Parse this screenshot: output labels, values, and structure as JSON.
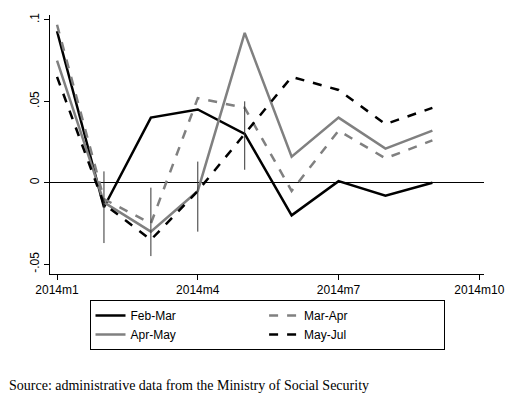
{
  "chart_data": {
    "type": "line",
    "caption": "Source: administrative data from the Ministry of Social Security",
    "categories": [
      "2014m1",
      null,
      null,
      "2014m4",
      null,
      null,
      "2014m7",
      null,
      null,
      "2014m10"
    ],
    "series": [
      {
        "name": "Feb-Mar",
        "color": "#000000",
        "line_style": "solid",
        "values": [
          0.093,
          -0.015,
          0.04,
          0.045,
          0.03,
          -0.02,
          0.001,
          -0.008,
          0.0,
          null
        ]
      },
      {
        "name": "Mar-Apr",
        "color": "#808080",
        "line_style": "dash",
        "values": [
          0.097,
          -0.01,
          -0.025,
          0.052,
          0.046,
          -0.005,
          0.032,
          0.015,
          0.026,
          null
        ]
      },
      {
        "name": "Apr-May",
        "color": "#808080",
        "line_style": "solid",
        "values": [
          0.075,
          -0.012,
          -0.03,
          -0.005,
          0.092,
          0.016,
          0.04,
          0.021,
          0.032,
          null
        ]
      },
      {
        "name": "May-Jul",
        "color": "#000000",
        "line_style": "dash",
        "values": [
          0.065,
          -0.013,
          -0.035,
          -0.005,
          0.03,
          0.065,
          0.057,
          0.036,
          0.046,
          null
        ],
        "ci_low": [
          null,
          -0.037,
          -0.045,
          -0.03,
          0.008,
          null,
          null,
          null,
          null,
          null
        ],
        "ci_high": [
          null,
          0.007,
          -0.003,
          0.013,
          0.05,
          null,
          null,
          null,
          null,
          null
        ]
      }
    ],
    "ylim": [
      -0.056,
      0.103
    ],
    "yticks": [
      {
        "value": -0.05,
        "label": "-.05"
      },
      {
        "value": 0,
        "label": "0"
      },
      {
        "value": 0.05,
        "label": ".05"
      },
      {
        "value": 0.1,
        "label": ".1"
      }
    ],
    "grid": false,
    "legend": "bottom"
  }
}
